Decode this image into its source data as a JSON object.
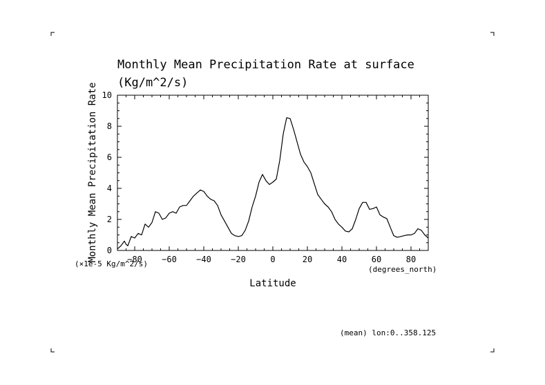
{
  "chart_data": {
    "type": "line",
    "title": "Monthly Mean Precipitation Rate at surface",
    "title_units": "(Kg/m^2/s)",
    "xlabel": "Latitude",
    "ylabel": "Monthly Mean Precipitation Rate",
    "x_units": "(degrees_north)",
    "y_units": "(×1e-5 Kg/m^2/s)",
    "annotation": "(mean) lon:0..358.125",
    "xlim": [
      -90,
      90
    ],
    "ylim": [
      0,
      10
    ],
    "x_ticks": [
      -80,
      -60,
      -40,
      -20,
      0,
      20,
      40,
      60,
      80
    ],
    "y_ticks": [
      0,
      2,
      4,
      6,
      8,
      10
    ],
    "series": [
      {
        "color": "#000000",
        "x": [
          -90,
          -88,
          -86,
          -85,
          -84,
          -82,
          -80,
          -78,
          -76,
          -74,
          -72,
          -70,
          -68,
          -66,
          -64,
          -62,
          -60,
          -58,
          -56,
          -54,
          -52,
          -50,
          -48,
          -46,
          -44,
          -42,
          -40,
          -38,
          -36,
          -34,
          -32,
          -30,
          -28,
          -26,
          -24,
          -22,
          -20,
          -18,
          -16,
          -14,
          -12,
          -10,
          -8,
          -6,
          -4,
          -2,
          0,
          2,
          4,
          6,
          8,
          10,
          12,
          14,
          16,
          18,
          20,
          22,
          24,
          26,
          28,
          30,
          32,
          34,
          36,
          38,
          40,
          42,
          44,
          46,
          48,
          50,
          52,
          54,
          56,
          58,
          60,
          62,
          64,
          66,
          68,
          70,
          72,
          74,
          76,
          78,
          80,
          82,
          84,
          86,
          88,
          90
        ],
        "y": [
          0.1,
          0.3,
          0.6,
          0.4,
          0.3,
          0.9,
          0.8,
          1.1,
          1.0,
          1.7,
          1.5,
          1.8,
          2.5,
          2.4,
          2.0,
          2.1,
          2.4,
          2.5,
          2.4,
          2.8,
          2.9,
          2.9,
          3.2,
          3.5,
          3.7,
          3.9,
          3.8,
          3.5,
          3.3,
          3.2,
          2.9,
          2.3,
          1.9,
          1.5,
          1.1,
          0.95,
          0.9,
          0.95,
          1.3,
          1.9,
          2.8,
          3.5,
          4.4,
          4.9,
          4.5,
          4.25,
          4.4,
          4.6,
          5.8,
          7.5,
          8.55,
          8.5,
          7.8,
          7.0,
          6.2,
          5.7,
          5.4,
          5.0,
          4.3,
          3.6,
          3.3,
          3.0,
          2.8,
          2.5,
          2.0,
          1.7,
          1.5,
          1.25,
          1.2,
          1.4,
          2.0,
          2.7,
          3.1,
          3.1,
          2.65,
          2.7,
          2.8,
          2.3,
          2.15,
          2.05,
          1.5,
          0.95,
          0.85,
          0.9,
          0.95,
          1.0,
          1.0,
          1.1,
          1.4,
          1.3,
          1.0,
          0.8
        ]
      }
    ]
  }
}
